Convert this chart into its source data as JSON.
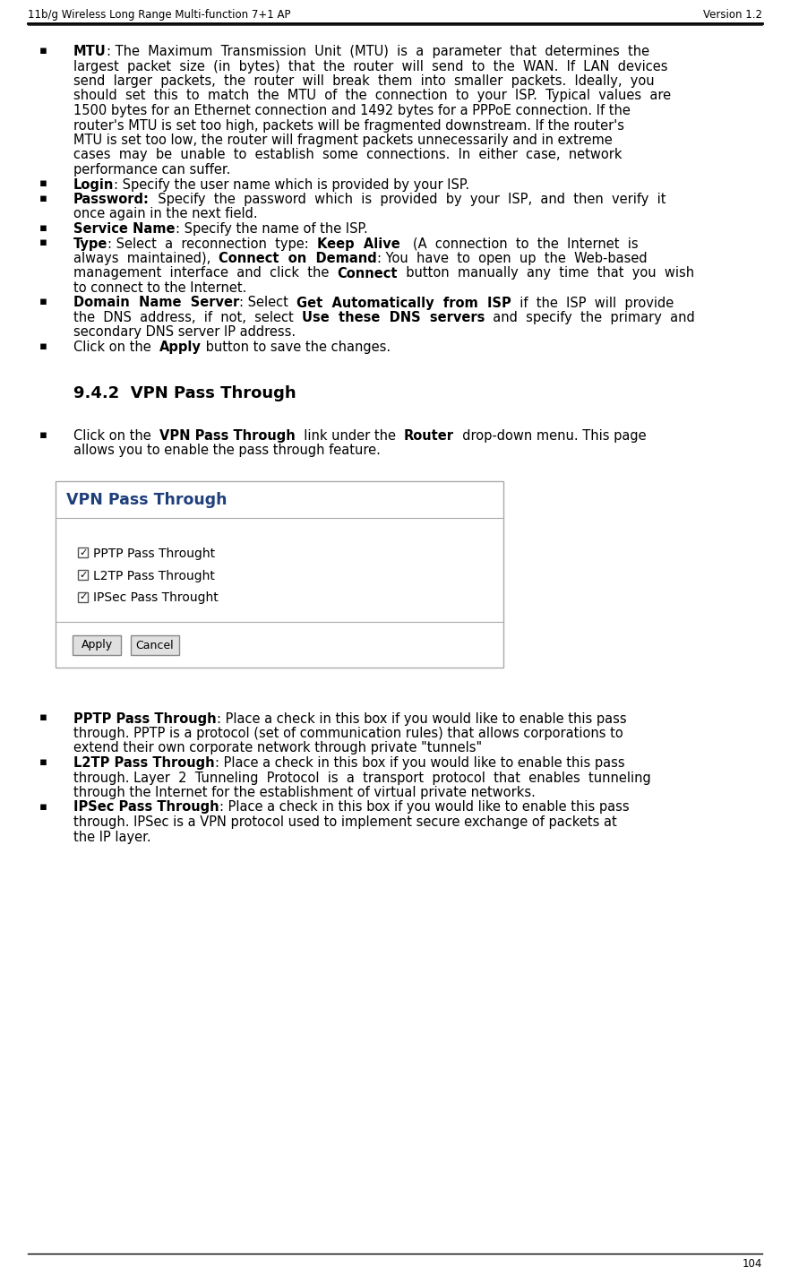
{
  "header_left": "11b/g Wireless Long Range Multi-function 7+1 AP",
  "header_right": "Version 1.2",
  "footer_page": "104",
  "bg_color": "#ffffff",
  "text_color": "#000000",
  "box_title": "VPN Pass Through",
  "box_title_color": "#1f3f7a",
  "checkbox_items": [
    "PPTP Pass Throught",
    "L2TP Pass Throught",
    "IPSec Pass Throught"
  ],
  "button_labels": [
    "Apply",
    "Cancel"
  ]
}
